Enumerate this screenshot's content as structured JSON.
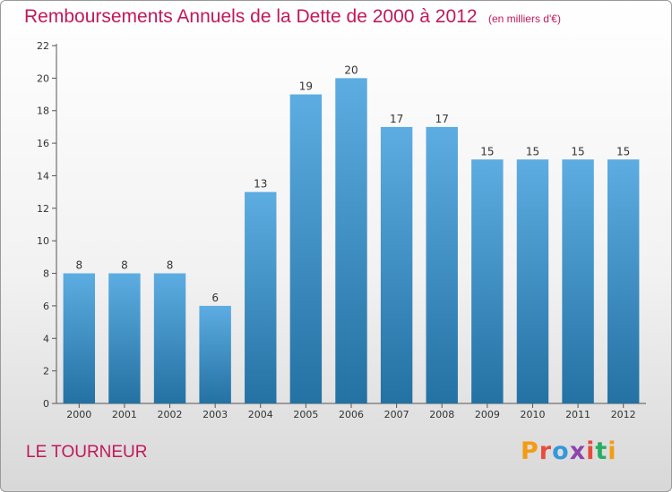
{
  "header": {
    "title": "Remboursements Annuels de la Dette de 2000 à 2012",
    "unit": "(en milliers d'€)"
  },
  "footer": {
    "commune": "LE TOURNEUR",
    "logo_text": "Proxiti",
    "logo_colors": [
      "#f39c12",
      "#e74c3c",
      "#3498db",
      "#8e44ad",
      "#e74c3c",
      "#27ae60",
      "#f39c12"
    ]
  },
  "chart_data": {
    "type": "bar",
    "title": "Remboursements Annuels de la Dette de 2000 à 2012",
    "categories": [
      "2000",
      "2001",
      "2002",
      "2003",
      "2004",
      "2005",
      "2006",
      "2007",
      "2008",
      "2009",
      "2010",
      "2011",
      "2012"
    ],
    "values": [
      8,
      8,
      8,
      6,
      13,
      19,
      20,
      17,
      17,
      15,
      15,
      15,
      15
    ],
    "ylim": [
      0,
      22
    ],
    "yticks": [
      0,
      2,
      4,
      6,
      8,
      10,
      12,
      14,
      16,
      18,
      20,
      22
    ],
    "grid": false,
    "bar_color_top": "#5dade2",
    "bar_color_bottom": "#2471a3"
  }
}
